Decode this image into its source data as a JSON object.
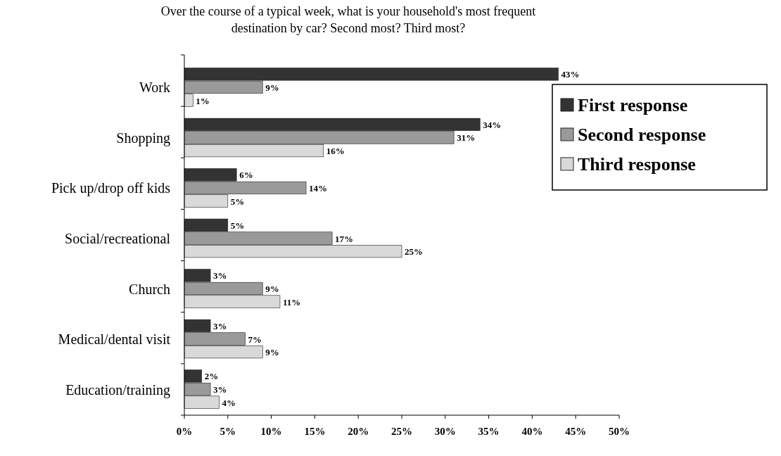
{
  "chart_data": {
    "type": "bar",
    "orientation": "horizontal",
    "title": "Over the course of a typical week, what is your household's most frequent destination by car?  Second most?  Third most?",
    "categories": [
      "Work",
      "Shopping",
      "Pick up/drop off kids",
      "Social/recreational",
      "Church",
      "Medical/dental visit",
      "Education/training"
    ],
    "series": [
      {
        "name": "First response",
        "color": "#333333",
        "values": [
          43,
          34,
          6,
          5,
          3,
          3,
          2
        ],
        "value_labels": [
          "43%",
          "34%",
          "6%",
          "5%",
          "3%",
          "3%",
          "2%"
        ]
      },
      {
        "name": "Second response",
        "color": "#9a9a9a",
        "values": [
          9,
          31,
          14,
          17,
          9,
          7,
          3
        ],
        "value_labels": [
          "9%",
          "31%",
          "14%",
          "17%",
          "9%",
          "7%",
          "3%"
        ]
      },
      {
        "name": "Third response",
        "color": "#d9d9d9",
        "values": [
          1,
          16,
          5,
          25,
          11,
          9,
          4
        ],
        "value_labels": [
          "1%",
          "16%",
          "5%",
          "25%",
          "11%",
          "9%",
          "4%"
        ]
      }
    ],
    "xlim": [
      0,
      50
    ],
    "xticks": [
      {
        "value": 0,
        "label": "0%"
      },
      {
        "value": 5,
        "label": "5%"
      },
      {
        "value": 10,
        "label": "10%"
      },
      {
        "value": 15,
        "label": "15%"
      },
      {
        "value": 20,
        "label": "20%"
      },
      {
        "value": 25,
        "label": "25%"
      },
      {
        "value": 30,
        "label": "30%"
      },
      {
        "value": 35,
        "label": "35%"
      },
      {
        "value": 40,
        "label": "40%"
      },
      {
        "value": 45,
        "label": "45%"
      },
      {
        "value": 50,
        "label": "50%"
      }
    ],
    "grid": false,
    "legend": "right"
  }
}
